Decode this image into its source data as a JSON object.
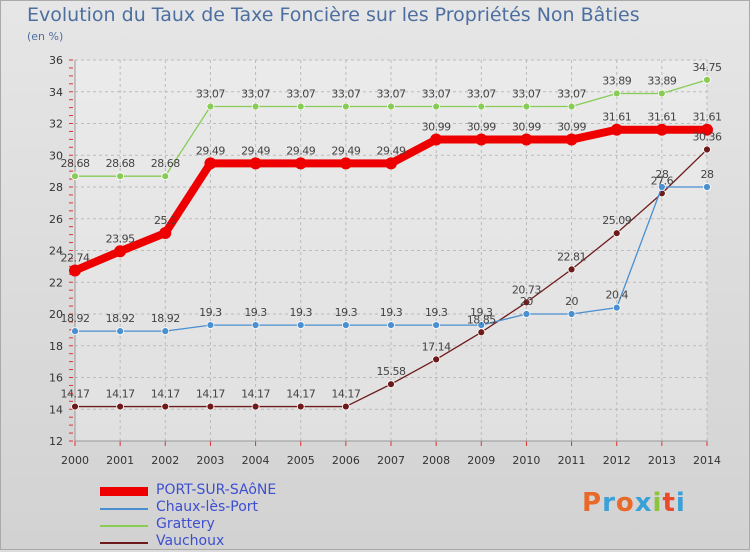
{
  "title": "Evolution du Taux de Taxe Foncière sur les Propriétés Non Bâties",
  "unit_label": "(en %)",
  "logo": {
    "text": "Proxiti",
    "colors": [
      "#e8692a",
      "#3aa0d8",
      "#e8692a",
      "#3aa0d8",
      "#8cc43c",
      "#e84a2a",
      "#3aa0d8"
    ]
  },
  "chart_data": {
    "type": "line",
    "title": "Evolution du Taux de Taxe Foncière sur les Propriétés Non Bâties",
    "ylabel": "(en %)",
    "ylim": [
      12,
      36
    ],
    "yticks": [
      12,
      14,
      16,
      18,
      20,
      22,
      24,
      26,
      28,
      30,
      32,
      34,
      36
    ],
    "x": [
      "2000",
      "2001",
      "2002",
      "2003",
      "2004",
      "2005",
      "2006",
      "2007",
      "2008",
      "2009",
      "2010",
      "2011",
      "2012",
      "2013",
      "2014"
    ],
    "grid": true,
    "legend_position": "bottom-left",
    "series": [
      {
        "name": "PORT-SUR-SAôNE",
        "color": "#ee0000",
        "values": [
          22.74,
          23.95,
          25.1,
          29.49,
          29.49,
          29.49,
          29.49,
          29.49,
          30.99,
          30.99,
          30.99,
          30.99,
          31.61,
          31.61,
          31.61
        ],
        "labels": [
          "22.74",
          "23.95",
          "25.1",
          "29.49",
          "29.49",
          "29.49",
          "29.49",
          "29.49",
          "30.99",
          "30.99",
          "30.99",
          "30.99",
          "31.61",
          "31.61",
          "31.61"
        ]
      },
      {
        "name": "Chaux-lès-Port",
        "color": "#4a8fd0",
        "values": [
          18.92,
          18.92,
          18.92,
          19.3,
          19.3,
          19.3,
          19.3,
          19.3,
          19.3,
          19.3,
          20,
          20,
          20.4,
          28,
          28
        ],
        "labels": [
          "18.92",
          "18.92",
          "18.92",
          "19.3",
          "19.3",
          "19.3",
          "19.3",
          "19.3",
          "19.3",
          "19.3",
          "20",
          "20",
          "20.4",
          "28",
          "28"
        ]
      },
      {
        "name": "Grattery",
        "color": "#88cc55",
        "values": [
          28.68,
          28.68,
          28.68,
          33.07,
          33.07,
          33.07,
          33.07,
          33.07,
          33.07,
          33.07,
          33.07,
          33.07,
          33.89,
          33.89,
          34.75
        ],
        "labels": [
          "28.68",
          "28.68",
          "28.68",
          "33.07",
          "33.07",
          "33.07",
          "33.07",
          "33.07",
          "33.07",
          "33.07",
          "33.07",
          "33.07",
          "33.89",
          "33.89",
          "34.75"
        ]
      },
      {
        "name": "Vauchoux",
        "color": "#6e1a1a",
        "values": [
          14.17,
          14.17,
          14.17,
          14.17,
          14.17,
          14.17,
          14.17,
          15.58,
          17.14,
          18.85,
          20.73,
          22.81,
          25.09,
          27.6,
          30.36
        ],
        "labels": [
          "14.17",
          "14.17",
          "14.17",
          "14.17",
          "14.17",
          "14.17",
          "14.17",
          "15.58",
          "17.14",
          "18.85",
          "20.73",
          "22.81",
          "25.09",
          "27.6",
          "30.36"
        ]
      }
    ]
  }
}
